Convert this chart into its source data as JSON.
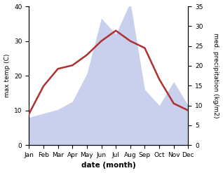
{
  "months": [
    "Jan",
    "Feb",
    "Mar",
    "Apr",
    "May",
    "Jun",
    "Jul",
    "Aug",
    "Sep",
    "Oct",
    "Nov",
    "Dec"
  ],
  "max_temp": [
    9,
    17,
    22,
    23,
    26,
    30,
    33,
    30,
    28,
    19,
    12,
    10
  ],
  "precipitation": [
    7,
    8,
    9,
    11,
    18,
    32,
    28,
    36,
    14,
    10,
    16,
    10
  ],
  "temp_color": "#b03030",
  "precip_color_fill": "#c8d0ee",
  "title": "",
  "xlabel": "date (month)",
  "ylabel_left": "max temp (C)",
  "ylabel_right": "med. precipitation (kg/m2)",
  "ylim_left": [
    0,
    40
  ],
  "ylim_right": [
    0,
    35
  ],
  "yticks_left": [
    0,
    10,
    20,
    30,
    40
  ],
  "yticks_right": [
    0,
    5,
    10,
    15,
    20,
    25,
    30,
    35
  ],
  "line_width": 1.8,
  "bg_color": "#ffffff"
}
